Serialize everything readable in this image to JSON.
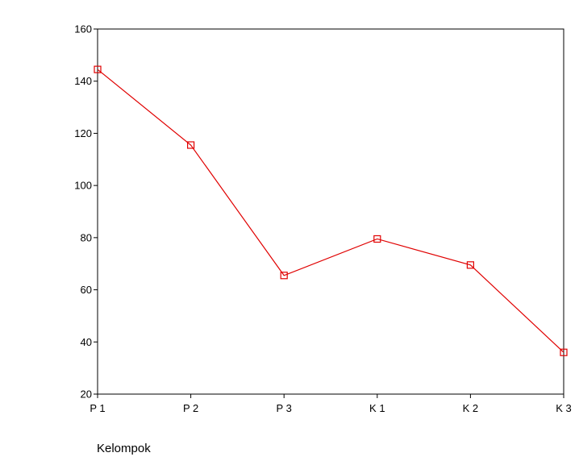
{
  "chart_data": {
    "type": "line",
    "title": "",
    "xlabel": "Kelompok",
    "ylabel": "",
    "categories": [
      "P 1",
      "P 2",
      "P 3",
      "K 1",
      "K 2",
      "K 3"
    ],
    "series": [
      {
        "values": [
          144.5,
          115.5,
          65.5,
          79.5,
          69.5,
          36
        ]
      }
    ],
    "ylim": [
      20,
      160
    ],
    "yticks": [
      20,
      40,
      60,
      80,
      100,
      120,
      140,
      160
    ],
    "grid": false,
    "marker": "square-open",
    "line_color": "#e00000",
    "axis_color": "#000000"
  }
}
